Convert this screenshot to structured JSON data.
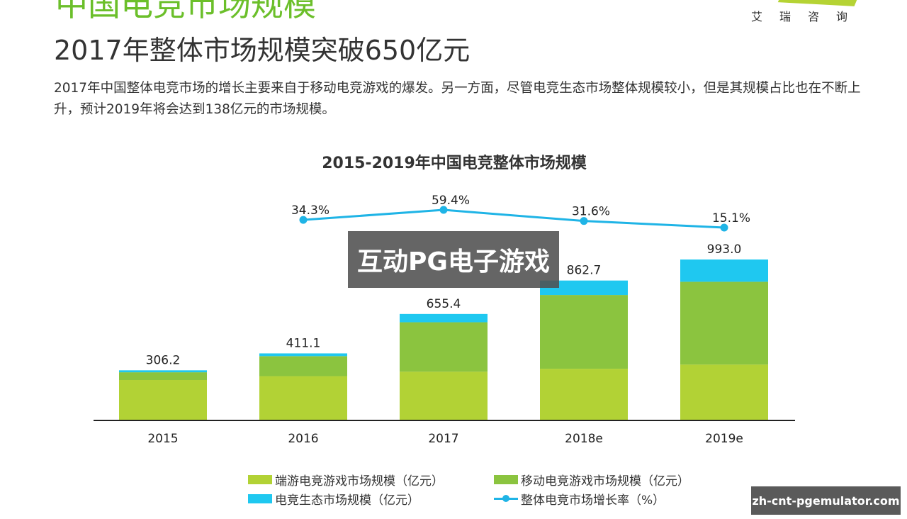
{
  "header": {
    "section_title": "中国电竞市场规模",
    "logo_text": "艾瑞咨询",
    "headline": "2017年整体市场规模突破650亿元",
    "paragraph": "2017年中国整体电竞市场的增长主要来自于移动电竞游戏的爆发。另一方面，尽管电竞生态市场整体规模较小，但是其规模占比也在不断上升，预计2019年将会达到138亿元的市场规模。"
  },
  "overlay": {
    "watermark": "互动PG电子游戏",
    "site_badge": "zh-cnt-pgemulator.com"
  },
  "colors": {
    "pc": "#b2d235",
    "mobile": "#8bc43f",
    "eco": "#1fc8f0",
    "growth": "#1fb4e6"
  },
  "chart_data": {
    "type": "bar",
    "stacked": true,
    "title": "2015-2019年中国电竞整体市场规模",
    "categories": [
      "2015",
      "2016",
      "2017",
      "2018e",
      "2019e"
    ],
    "series": [
      {
        "name": "端游电竞游戏市场规模（亿元）",
        "values": [
          246,
          270,
          298,
          316,
          342
        ]
      },
      {
        "name": "移动电竞游戏市场规模（亿元）",
        "values": [
          48,
          124,
          306,
          457,
          513
        ]
      },
      {
        "name": "电竞生态市场规模（亿元）",
        "values": [
          12.2,
          17.1,
          51.4,
          89.7,
          138
        ]
      }
    ],
    "totals": [
      "306.2",
      "411.1",
      "655.4",
      "862.7",
      "993.0"
    ],
    "line_series": {
      "name": "整体电竞市场增长率（%）",
      "categories": [
        "2016",
        "2017",
        "2018e",
        "2019e"
      ],
      "values": [
        34.3,
        59.4,
        31.6,
        15.1
      ],
      "labels": [
        "34.3%",
        "59.4%",
        "31.6%",
        "15.1%"
      ]
    },
    "ylim": [
      0,
      993
    ],
    "grid": false,
    "legend": "bottom"
  }
}
